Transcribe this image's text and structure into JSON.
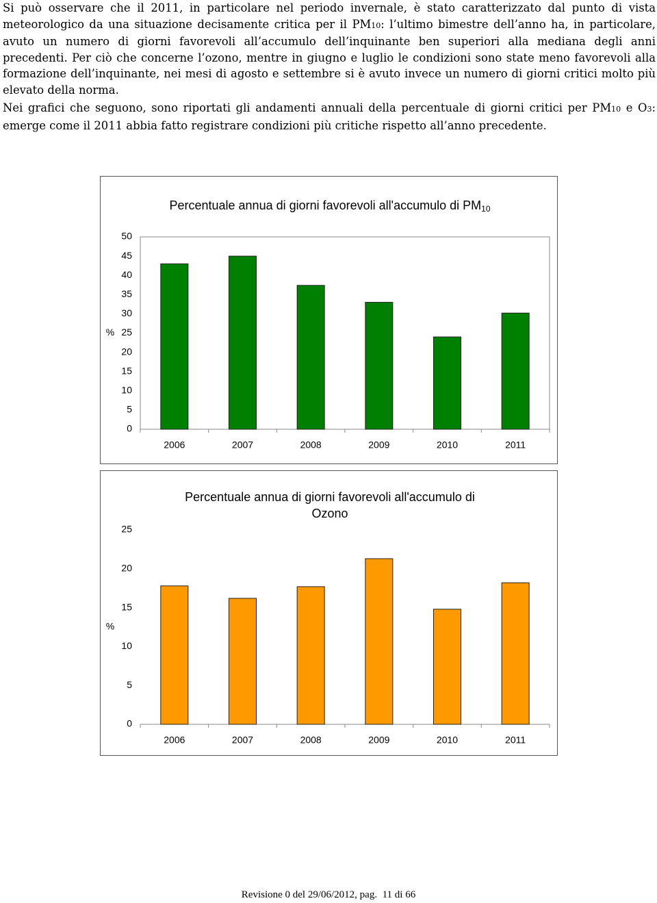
{
  "paragraphs": [
    [
      "Si può osservare che il 2011, in particolare nel periodo invernale, è stato caratterizzato dal punto di vista meteorologico da una situazione decisamente critica per il PM",
      {
        "sub": "10"
      },
      ": l’ultimo bimestre dell’anno ha, in particolare, avuto un numero di giorni favorevoli all’accumulo dell’inquinante ben superiori alla mediana degli anni precedenti. Per ciò che concerne l’ozono, mentre in giugno e luglio le condizioni sono state meno favorevoli alla formazione dell’inquinante, nei mesi di agosto e settembre si è avuto invece un numero di giorni critici molto più elevato della norma."
    ],
    [
      "Nei grafici che seguono, sono riportati gli andamenti annuali della percentuale di giorni critici per PM",
      {
        "sub": "10"
      },
      " e O",
      {
        "sub": "3"
      },
      ": emerge come il 2011 abbia fatto registrare condizioni più critiche rispetto all’anno precedente."
    ]
  ],
  "chart_data": [
    {
      "type": "bar",
      "title": "Percentuale annua di giorni favorevoli all'accumulo di PM",
      "title_sub": "10",
      "y_label": "%",
      "categories": [
        "2006",
        "2007",
        "2008",
        "2009",
        "2010",
        "2011"
      ],
      "values": [
        43,
        45,
        37.4,
        33,
        24,
        30.2
      ],
      "color": "#008000",
      "ylim": [
        0,
        50
      ],
      "yticks": [
        0,
        5,
        10,
        15,
        20,
        25,
        30,
        35,
        40,
        45,
        50
      ],
      "plot_border": true
    },
    {
      "type": "bar",
      "title": "Percentuale annua di giorni favorevoli all'accumulo di Ozono",
      "y_label": "%",
      "categories": [
        "2006",
        "2007",
        "2008",
        "2009",
        "2010",
        "2011"
      ],
      "values": [
        17.8,
        16.2,
        17.7,
        21.3,
        14.8,
        18.2
      ],
      "color": "#ff9900",
      "ylim": [
        0,
        25
      ],
      "yticks": [
        0,
        5,
        10,
        15,
        20,
        25
      ],
      "plot_border": false
    }
  ],
  "footer": "Revisione 0 del 29/06/2012, pag.  11 di 66"
}
